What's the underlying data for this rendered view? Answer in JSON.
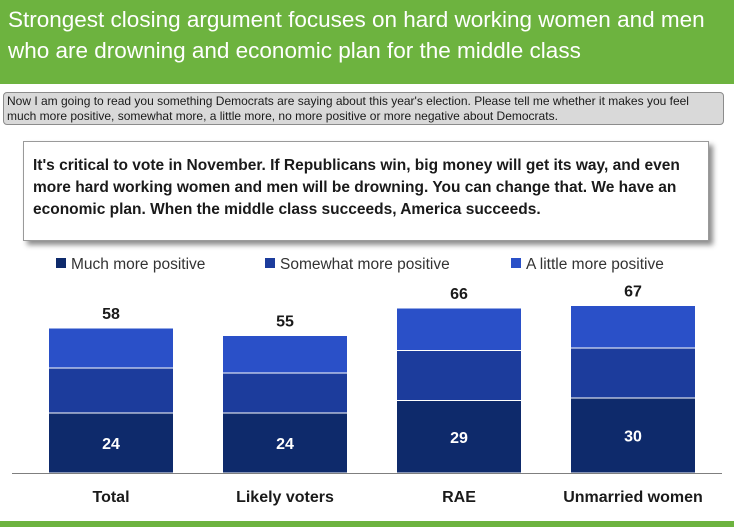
{
  "header": {
    "title": "Strongest closing argument focuses on hard working women and men who are drowning and economic plan for the middle class"
  },
  "question": {
    "text": "Now I am going to read you something Democrats are saying about this year's election. Please tell me whether it makes you feel much more positive, somewhat more, a little more, no more positive or more negative about Democrats."
  },
  "statement": {
    "text": "It's critical to vote in November. If Republicans win, big money will get its way, and even more hard working women and men will be drowning. You can change that. We have an economic plan. When the middle class succeeds, America succeeds."
  },
  "legend": [
    {
      "label": "Much more positive",
      "color": "#0e2a6b"
    },
    {
      "label": "Somewhat more positive",
      "color": "#1c3c9c"
    },
    {
      "label": "A little more positive",
      "color": "#2a50c8"
    }
  ],
  "colors": {
    "header_green": "#6db33f",
    "bar_much": "#0e2a6b",
    "bar_somewhat": "#1c3c9c",
    "bar_little": "#2a50c8"
  },
  "chart_data": {
    "type": "bar",
    "stacked": true,
    "categories": [
      "Total",
      "Likely voters",
      "RAE",
      "Unmarried women"
    ],
    "series": [
      {
        "name": "Much more positive",
        "values": [
          24,
          24,
          29,
          30
        ]
      },
      {
        "name": "Somewhat more positive",
        "values": [
          18,
          16,
          20,
          20
        ]
      },
      {
        "name": "A little more positive",
        "values": [
          16,
          15,
          17,
          17
        ]
      }
    ],
    "totals": [
      58,
      55,
      66,
      67
    ],
    "segment_labels": [
      24,
      24,
      29,
      30
    ],
    "ylim": [
      0,
      100
    ],
    "legend_position": "top",
    "grid": false
  }
}
